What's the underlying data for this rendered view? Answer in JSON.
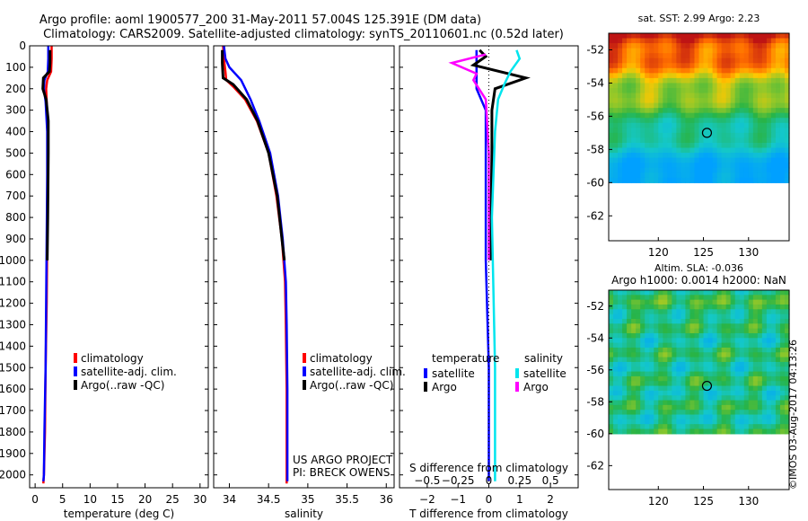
{
  "header": {
    "title_line1": "Argo profile: aoml 1900577_200 31-May-2011 57.004S 125.391E (DM data)",
    "title_line2": "Climatology: CARS2009. Satellite-adjusted climatology: synTS_20110601.nc (0.52d later)"
  },
  "credit": "©IMOS 03-Aug-2017 04:13:26",
  "colors": {
    "climatology": "#ff0000",
    "satellite": "#0000ff",
    "argo": "#000000",
    "satellite_salinity": "#00e5ee",
    "argo_salinity": "#ff00ff"
  },
  "chart_data": [
    {
      "type": "line",
      "xlabel": "temperature (deg C)",
      "ylabel": "",
      "xlim": [
        -1,
        31.5
      ],
      "ylim": [
        2060,
        0
      ],
      "xticks": [
        "0",
        "5",
        "10",
        "15",
        "20",
        "25",
        "30"
      ],
      "xtick_values": [
        0,
        5,
        10,
        15,
        20,
        25,
        30
      ],
      "yticks": [
        "0",
        "100",
        "200",
        "300",
        "400",
        "500",
        "600",
        "700",
        "800",
        "900",
        "1000",
        "1100",
        "1200",
        "1300",
        "1400",
        "1500",
        "1600",
        "1700",
        "1800",
        "1900",
        "2000"
      ],
      "legend": [
        "climatology",
        "satellite-adj. clim.",
        "Argo(..raw -QC)"
      ],
      "series": [
        {
          "name": "climatology",
          "color_key": "climatology",
          "points": [
            [
              3.0,
              0
            ],
            [
              3.0,
              60
            ],
            [
              2.9,
              120
            ],
            [
              2.2,
              160
            ],
            [
              2.0,
              200
            ],
            [
              2.1,
              260
            ],
            [
              2.3,
              400
            ],
            [
              2.3,
              600
            ],
            [
              2.2,
              900
            ],
            [
              2.1,
              1200
            ],
            [
              1.9,
              1500
            ],
            [
              1.8,
              1800
            ],
            [
              1.6,
              2000
            ],
            [
              1.5,
              2040
            ]
          ]
        },
        {
          "name": "satellite-adj. clim.",
          "color_key": "satellite",
          "points": [
            [
              2.4,
              0
            ],
            [
              2.4,
              60
            ],
            [
              2.3,
              120
            ],
            [
              1.7,
              160
            ],
            [
              1.6,
              200
            ],
            [
              1.9,
              260
            ],
            [
              2.2,
              400
            ],
            [
              2.2,
              600
            ],
            [
              2.1,
              900
            ],
            [
              2.0,
              1200
            ],
            [
              1.9,
              1500
            ],
            [
              1.7,
              1800
            ],
            [
              1.6,
              2000
            ],
            [
              1.5,
              2030
            ]
          ]
        },
        {
          "name": "Argo(..raw -QC)",
          "color_key": "argo",
          "points": [
            [
              2.7,
              20
            ],
            [
              2.7,
              80
            ],
            [
              2.6,
              120
            ],
            [
              1.5,
              150
            ],
            [
              1.4,
              200
            ],
            [
              2.0,
              250
            ],
            [
              2.4,
              350
            ],
            [
              2.4,
              500
            ],
            [
              2.3,
              800
            ],
            [
              2.2,
              1000
            ]
          ]
        }
      ]
    },
    {
      "type": "line",
      "xlabel": "salinity",
      "ylabel": "",
      "xlim": [
        33.8,
        36.1
      ],
      "ylim": [
        2060,
        0
      ],
      "xticks": [
        "34",
        "34.5",
        "35",
        "35.5",
        "36"
      ],
      "xtick_values": [
        34,
        34.5,
        35,
        35.5,
        36
      ],
      "legend": [
        "climatology",
        "satellite-adj. clim.",
        "Argo(..raw -QC)"
      ],
      "annotation": [
        "US ARGO PROJECT",
        "PI: BRECK OWENS"
      ],
      "series": [
        {
          "name": "climatology",
          "color_key": "climatology",
          "points": [
            [
              33.92,
              0
            ],
            [
              33.93,
              60
            ],
            [
              33.95,
              120
            ],
            [
              33.96,
              160
            ],
            [
              34.05,
              190
            ],
            [
              34.2,
              250
            ],
            [
              34.35,
              350
            ],
            [
              34.5,
              500
            ],
            [
              34.6,
              700
            ],
            [
              34.67,
              900
            ],
            [
              34.71,
              1100
            ],
            [
              34.72,
              1300
            ],
            [
              34.73,
              1600
            ],
            [
              34.73,
              2040
            ]
          ]
        },
        {
          "name": "satellite-adj. clim.",
          "color_key": "satellite",
          "points": [
            [
              33.93,
              0
            ],
            [
              33.95,
              60
            ],
            [
              34.0,
              100
            ],
            [
              34.15,
              160
            ],
            [
              34.27,
              250
            ],
            [
              34.38,
              350
            ],
            [
              34.52,
              500
            ],
            [
              34.62,
              700
            ],
            [
              34.68,
              900
            ],
            [
              34.72,
              1100
            ],
            [
              34.73,
              1300
            ],
            [
              34.74,
              1600
            ],
            [
              34.74,
              2030
            ]
          ]
        },
        {
          "name": "Argo(..raw -QC)",
          "color_key": "argo",
          "points": [
            [
              33.91,
              20
            ],
            [
              33.91,
              80
            ],
            [
              33.92,
              150
            ],
            [
              34.05,
              180
            ],
            [
              34.22,
              250
            ],
            [
              34.36,
              350
            ],
            [
              34.5,
              500
            ],
            [
              34.61,
              700
            ],
            [
              34.67,
              900
            ],
            [
              34.7,
              1000
            ]
          ]
        }
      ]
    },
    {
      "type": "line",
      "xlabel": "T difference from climatology",
      "ylabel": "",
      "title_bottom": "S difference from climatology",
      "xlim": [
        -2.9,
        2.9
      ],
      "ylim": [
        2060,
        0
      ],
      "xticks": [
        "−2",
        "−1",
        "0",
        "1",
        "2"
      ],
      "xtick_values": [
        -2,
        -1,
        0,
        1,
        2
      ],
      "s_ticks": [
        "−0.5",
        "−0.25",
        "0",
        "0.25",
        "0.5"
      ],
      "s_tick_values": [
        -2,
        -1,
        0,
        1,
        2
      ],
      "legend_headers": [
        "temperature",
        "salinity"
      ],
      "legend": [
        "satellite",
        "Argo",
        "satellite",
        "Argo"
      ],
      "series": [
        {
          "name": "satellite",
          "quantity": "temperature",
          "color_key": "satellite",
          "points": [
            [
              -0.4,
              20
            ],
            [
              -0.4,
              80
            ],
            [
              -0.4,
              130
            ],
            [
              -0.4,
              200
            ],
            [
              -0.1,
              300
            ],
            [
              -0.1,
              500
            ],
            [
              -0.1,
              1000
            ],
            [
              0.0,
              1500
            ],
            [
              0.0,
              2030
            ]
          ]
        },
        {
          "name": "Argo",
          "quantity": "temperature",
          "color_key": "argo",
          "points": [
            [
              -0.3,
              20
            ],
            [
              -0.1,
              50
            ],
            [
              -0.5,
              90
            ],
            [
              1.2,
              150
            ],
            [
              0.2,
              200
            ],
            [
              0.1,
              300
            ],
            [
              0.1,
              500
            ],
            [
              0.05,
              1000
            ]
          ]
        },
        {
          "name": "satellite",
          "quantity": "salinity",
          "color_key": "satellite_salinity",
          "points": [
            [
              0.9,
              20
            ],
            [
              1.0,
              60
            ],
            [
              0.7,
              120
            ],
            [
              0.5,
              180
            ],
            [
              0.3,
              250
            ],
            [
              0.2,
              400
            ],
            [
              0.1,
              800
            ],
            [
              0.2,
              1500
            ],
            [
              0.2,
              2030
            ]
          ]
        },
        {
          "name": "Argo",
          "quantity": "salinity",
          "color_key": "argo_salinity",
          "points": [
            [
              -0.1,
              40
            ],
            [
              -1.2,
              80
            ],
            [
              -0.4,
              130
            ],
            [
              -0.5,
              160
            ],
            [
              -0.1,
              250
            ],
            [
              0.0,
              500
            ],
            [
              0.0,
              1000
            ]
          ]
        }
      ]
    },
    {
      "type": "heatmap",
      "title": "sat. SST: 2.99 Argo: 2.23",
      "xlim": [
        114.5,
        134.5
      ],
      "ylim": [
        -63.5,
        -51
      ],
      "xticks": [
        "120",
        "125",
        "130"
      ],
      "xtick_values": [
        120,
        125,
        130
      ],
      "yticks": [
        "-52",
        "-54",
        "-56",
        "-58",
        "-60",
        "-62"
      ],
      "ytick_values": [
        -52,
        -54,
        -56,
        -58,
        -60,
        -62
      ],
      "data_ylim": [
        -60,
        -51
      ],
      "marker": [
        125.39,
        -57.0
      ]
    },
    {
      "type": "heatmap",
      "title": "Altim. SLA: -0.036",
      "subtitle": "Argo h1000: 0.0014 h2000: NaN",
      "xlim": [
        114.5,
        134.5
      ],
      "ylim": [
        -63.5,
        -51
      ],
      "xticks": [
        "120",
        "125",
        "130"
      ],
      "xtick_values": [
        120,
        125,
        130
      ],
      "yticks": [
        "-52",
        "-54",
        "-56",
        "-58",
        "-60",
        "-62"
      ],
      "ytick_values": [
        -52,
        -54,
        -56,
        -58,
        -60,
        -62
      ],
      "data_ylim": [
        -60,
        -51
      ],
      "marker": [
        125.39,
        -57.0
      ]
    }
  ]
}
